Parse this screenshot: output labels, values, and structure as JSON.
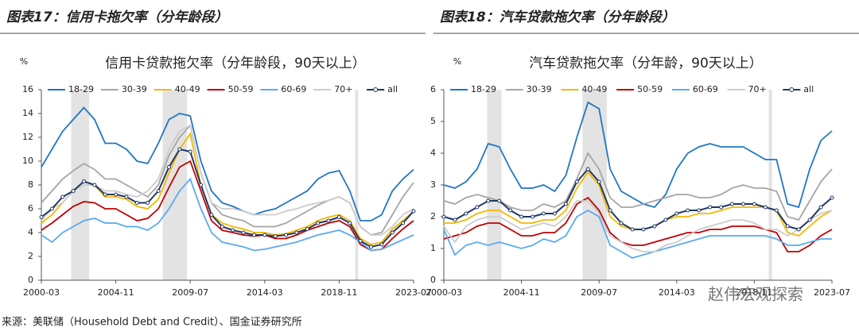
{
  "chart_data": [
    {
      "type": "line",
      "heading": "图表17：信用卡拖欠率（分年龄段）",
      "title": "信用卡贷款拖欠率（分年龄段，90天以上）",
      "ylabel": "%",
      "categories": [
        "2000-03",
        null,
        null,
        null,
        null,
        null,
        null,
        "2004-11",
        null,
        null,
        null,
        null,
        null,
        null,
        "2009-07",
        null,
        null,
        null,
        null,
        null,
        null,
        "2014-03",
        null,
        null,
        null,
        null,
        null,
        null,
        "2018-11",
        null,
        null,
        null,
        null,
        null,
        null,
        "2023-07"
      ],
      "ylim": [
        0,
        16
      ],
      "yticks": [
        0,
        2,
        4,
        6,
        8,
        10,
        12,
        14,
        16
      ],
      "shaded": [
        [
          2.8,
          4.5
        ],
        [
          11.4,
          13.7
        ],
        [
          29.5,
          29.8
        ]
      ],
      "series": [
        {
          "name": "18-29",
          "color": "#1f77c4",
          "values": [
            9.5,
            11,
            12.5,
            13.5,
            14.5,
            13.5,
            11.5,
            11.5,
            11,
            10,
            9.8,
            11.5,
            13.5,
            14,
            13.8,
            10,
            7.5,
            6.5,
            6.2,
            5.8,
            5.5,
            5.8,
            6,
            6.5,
            7,
            7.5,
            8.5,
            9,
            9.2,
            7.5,
            5,
            5,
            5.5,
            7.5,
            8.5,
            9.3
          ]
        },
        {
          "name": "30-39",
          "color": "#a5a5a5",
          "values": [
            6.5,
            7.5,
            8.5,
            9.2,
            9.8,
            9.3,
            8.5,
            8.5,
            8,
            7.5,
            7,
            8,
            10.5,
            12,
            13,
            9,
            6.5,
            5.5,
            5.2,
            5,
            4.5,
            4.5,
            4.5,
            4.8,
            5.3,
            5.8,
            6.3,
            6.7,
            7,
            6.5,
            4.5,
            3.8,
            4,
            5.5,
            7,
            8.2
          ]
        },
        {
          "name": "40-49",
          "color": "#f5b800",
          "values": [
            4.8,
            5.5,
            6.5,
            7.5,
            8.3,
            8,
            7,
            7,
            6.8,
            6.2,
            6,
            6.8,
            9,
            11,
            12.3,
            8,
            5.5,
            4.8,
            4.5,
            4.3,
            4,
            4,
            3.8,
            3.9,
            4.2,
            4.5,
            5,
            5.3,
            5.5,
            5,
            3.5,
            3,
            3.2,
            4.3,
            5,
            5.8
          ]
        },
        {
          "name": "50-59",
          "color": "#c00000",
          "values": [
            4.2,
            4.8,
            5.5,
            6.2,
            6.6,
            6.5,
            6,
            6,
            5.5,
            5,
            5.2,
            6,
            7.8,
            9.5,
            10,
            7.5,
            5,
            4.2,
            4,
            3.8,
            3.7,
            3.8,
            3.5,
            3.5,
            3.8,
            4.2,
            4.5,
            4.8,
            5,
            4.5,
            3,
            2.5,
            2.6,
            3.5,
            4.3,
            5
          ]
        },
        {
          "name": "60-69",
          "color": "#5aaaf0",
          "values": [
            3.8,
            3.2,
            4,
            4.5,
            5,
            5.2,
            4.8,
            4.8,
            4.5,
            4.5,
            4.2,
            4.8,
            6,
            7.5,
            8.5,
            6,
            4,
            3.2,
            3,
            2.8,
            2.5,
            2.6,
            2.8,
            3,
            3.2,
            3.5,
            3.8,
            4,
            4.2,
            3.8,
            3.2,
            2.5,
            2.6,
            3,
            3.4,
            3.8
          ]
        },
        {
          "name": "70+",
          "color": "#cccccc",
          "values": [
            5,
            6,
            6.5,
            7.5,
            8,
            8,
            7.5,
            7.5,
            7.2,
            7,
            7.5,
            8.5,
            11,
            12.5,
            13,
            9,
            6.5,
            6,
            6,
            5.8,
            5.5,
            5.5,
            5.5,
            5.8,
            6,
            6.3,
            6.5,
            6.7,
            7,
            6.5,
            4.5,
            3.8,
            3.8,
            4.5,
            5.5,
            6
          ]
        },
        {
          "name": "all",
          "color": "#1f3864",
          "markers": true,
          "values": [
            5.3,
            6,
            7,
            7.5,
            8.3,
            8,
            7.2,
            7.2,
            7,
            6.5,
            6.5,
            7.5,
            9.5,
            11,
            10.8,
            8,
            5.5,
            4.5,
            4.2,
            4,
            3.8,
            3.8,
            3.7,
            3.8,
            4,
            4.3,
            4.8,
            5,
            5.3,
            4.8,
            3.3,
            2.8,
            3,
            4,
            4.8,
            5.8
          ]
        }
      ]
    },
    {
      "type": "line",
      "heading": "图表18：汽车贷款拖欠率（分年龄段）",
      "title": "汽车贷款拖欠率（分年龄，90天以上）",
      "ylabel": "%",
      "categories": [
        "2000-03",
        null,
        null,
        null,
        null,
        null,
        null,
        "2004-11",
        null,
        null,
        null,
        null,
        null,
        null,
        "2009-07",
        null,
        null,
        null,
        null,
        null,
        null,
        "2014-03",
        null,
        null,
        null,
        null,
        null,
        null,
        "2018-11",
        null,
        null,
        null,
        null,
        null,
        null,
        "2023-07"
      ],
      "ylim": [
        0,
        6
      ],
      "yticks": [
        0,
        1,
        2,
        3,
        4,
        5,
        6
      ],
      "shaded": [
        [
          3.9,
          5.2
        ],
        [
          12.5,
          14.7
        ],
        [
          29.3,
          29.6
        ]
      ],
      "series": [
        {
          "name": "18-29",
          "color": "#1f77c4",
          "values": [
            3,
            2.9,
            3.1,
            3.5,
            4.3,
            4.2,
            3.5,
            2.9,
            2.9,
            3,
            2.8,
            3.3,
            4.5,
            5.6,
            5.4,
            3.5,
            2.8,
            2.6,
            2.4,
            2.3,
            2.7,
            3.5,
            4,
            4.2,
            4.3,
            4.2,
            4.2,
            4.2,
            4,
            3.8,
            3.8,
            2.4,
            2.3,
            3.5,
            4.4,
            4.7
          ]
        },
        {
          "name": "30-39",
          "color": "#a5a5a5",
          "values": [
            2.5,
            2.4,
            2.6,
            2.7,
            2.6,
            2.5,
            2.3,
            2.2,
            2.2,
            2.4,
            2.3,
            2.5,
            3.2,
            4,
            3.5,
            2.6,
            2.3,
            2.3,
            2.4,
            2.5,
            2.6,
            2.7,
            2.7,
            2.6,
            2.6,
            2.7,
            2.9,
            3,
            2.9,
            2.9,
            2.8,
            2,
            1.9,
            2.5,
            3.1,
            3.5
          ]
        },
        {
          "name": "40-49",
          "color": "#f5b800",
          "values": [
            1.8,
            1.8,
            1.9,
            2.1,
            2.2,
            2.2,
            2,
            1.8,
            1.8,
            1.9,
            1.9,
            2.2,
            2.9,
            3.4,
            3,
            2,
            1.7,
            1.6,
            1.6,
            1.7,
            1.9,
            2,
            2,
            2.1,
            2.1,
            2.2,
            2.3,
            2.3,
            2.3,
            2.3,
            2.2,
            1.5,
            1.4,
            1.7,
            2,
            2.2
          ]
        },
        {
          "name": "50-59",
          "color": "#c00000",
          "values": [
            1.3,
            1.4,
            1.5,
            1.7,
            1.8,
            1.8,
            1.6,
            1.4,
            1.4,
            1.5,
            1.5,
            1.8,
            2.4,
            2.6,
            2.2,
            1.5,
            1.2,
            1.1,
            1.1,
            1.2,
            1.3,
            1.4,
            1.5,
            1.5,
            1.6,
            1.6,
            1.7,
            1.7,
            1.7,
            1.6,
            1.5,
            0.9,
            0.9,
            1.1,
            1.4,
            1.6
          ]
        },
        {
          "name": "60-69",
          "color": "#5aaaf0",
          "values": [
            1.6,
            0.8,
            1.1,
            1.2,
            1.1,
            1.2,
            1.1,
            1,
            1.1,
            1.3,
            1.2,
            1.4,
            2,
            2.2,
            2,
            1.1,
            0.9,
            0.7,
            0.8,
            0.9,
            1,
            1.1,
            1.2,
            1.3,
            1.4,
            1.4,
            1.4,
            1.4,
            1.4,
            1.4,
            1.3,
            1.1,
            1.1,
            1.2,
            1.3,
            1.3
          ]
        },
        {
          "name": "70+",
          "color": "#cccccc",
          "values": [
            1.7,
            1.2,
            1.7,
            1.9,
            2,
            2,
            1.8,
            1.6,
            1.7,
            1.8,
            1.7,
            2,
            2.5,
            2.5,
            2.1,
            1.4,
            1.2,
            1,
            0.9,
            0.9,
            1.1,
            1.2,
            1.4,
            1.6,
            1.7,
            1.8,
            1.9,
            1.9,
            1.8,
            1.6,
            1.6,
            1.4,
            1.6,
            1.9,
            2.1,
            2.2
          ]
        },
        {
          "name": "all",
          "color": "#1f3864",
          "markers": true,
          "values": [
            2,
            1.9,
            2.1,
            2.3,
            2.5,
            2.5,
            2.2,
            2,
            2,
            2.1,
            2.1,
            2.4,
            3.1,
            3.5,
            3.1,
            2.2,
            1.8,
            1.6,
            1.6,
            1.7,
            1.9,
            2.1,
            2.2,
            2.2,
            2.3,
            2.3,
            2.4,
            2.4,
            2.4,
            2.3,
            2.2,
            1.7,
            1.6,
            1.9,
            2.3,
            2.6
          ]
        }
      ]
    }
  ],
  "watermark": "赵伟宏观探索",
  "source": "来源：美联储（Household Debt and Credit）、国金证券研究所"
}
